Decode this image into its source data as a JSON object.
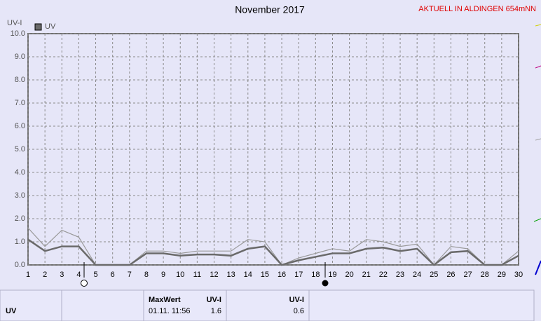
{
  "chart_data": {
    "type": "line",
    "title": "November 2017",
    "subtitle": "AKTUELL IN ALDINGEN 654mNN",
    "y_label": "UV-I",
    "x": [
      1,
      2,
      3,
      4,
      5,
      6,
      7,
      8,
      9,
      10,
      11,
      12,
      13,
      14,
      15,
      16,
      17,
      18,
      19,
      20,
      21,
      22,
      23,
      24,
      25,
      26,
      27,
      28,
      29,
      30
    ],
    "series": [
      {
        "color": "#9a9a9a",
        "values": [
          1.6,
          0.8,
          1.5,
          1.2,
          0.0,
          0.0,
          0.0,
          0.6,
          0.6,
          0.5,
          0.6,
          0.6,
          0.6,
          1.1,
          1.0,
          0.0,
          0.3,
          0.5,
          0.7,
          0.6,
          1.1,
          1.0,
          0.8,
          0.9,
          0.0,
          0.8,
          0.7,
          0.0,
          0.0,
          0.6
        ]
      },
      {
        "name": "UV",
        "color": "#6a6a6a",
        "values": [
          1.1,
          0.6,
          0.8,
          0.8,
          0.0,
          0.0,
          0.0,
          0.5,
          0.5,
          0.4,
          0.45,
          0.45,
          0.4,
          0.7,
          0.8,
          0.0,
          0.2,
          0.35,
          0.5,
          0.5,
          0.7,
          0.75,
          0.6,
          0.7,
          0.0,
          0.55,
          0.6,
          0.0,
          0.0,
          0.4
        ]
      }
    ],
    "xlim": [
      1,
      30
    ],
    "xticks": [
      1,
      2,
      3,
      4,
      5,
      6,
      7,
      8,
      9,
      10,
      11,
      12,
      13,
      14,
      15,
      16,
      17,
      18,
      19,
      20,
      21,
      22,
      23,
      24,
      25,
      26,
      27,
      28,
      29,
      30
    ],
    "ylim": [
      0,
      10
    ],
    "yticks": [
      {
        "value": 0,
        "label": "0.0"
      },
      {
        "value": 1,
        "label": "1.0"
      },
      {
        "value": 2,
        "label": "2.0"
      },
      {
        "value": 3,
        "label": "3.0"
      },
      {
        "value": 4,
        "label": "4.0"
      },
      {
        "value": 5,
        "label": "5.0"
      },
      {
        "value": 6,
        "label": "6.0"
      },
      {
        "value": 7,
        "label": "7.0"
      },
      {
        "value": 8,
        "label": "8.0"
      },
      {
        "value": 9,
        "label": "9.0"
      },
      {
        "value": 10,
        "label": "10.0"
      }
    ],
    "grid": true,
    "legend": "top-left"
  },
  "table": {
    "row_label": "UV",
    "max_header": "MaxWert",
    "max_unit": "UV-I",
    "max_time": "01.11. 11:56",
    "max_value": "1.6",
    "cur_unit": "UV-I",
    "cur_value": "0.6"
  }
}
